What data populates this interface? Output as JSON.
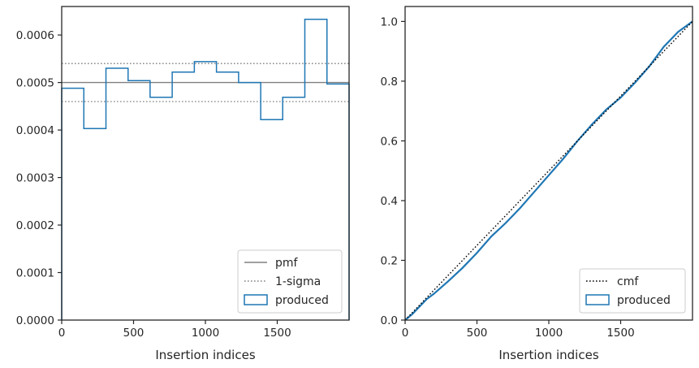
{
  "chart_data": [
    {
      "type": "step-histogram",
      "xlabel": "Insertion indices",
      "ylabel": "",
      "xlim": [
        0,
        2000
      ],
      "ylim": [
        0,
        0.00066
      ],
      "xticks": [
        0,
        500,
        1000,
        1500
      ],
      "yticks": [
        0,
        0.0001,
        0.0002,
        0.0003,
        0.0004,
        0.0005,
        0.0006
      ],
      "ytick_labels": [
        "0.0000",
        "0.0001",
        "0.0002",
        "0.0003",
        "0.0004",
        "0.0005",
        "0.0006"
      ],
      "bin_edges": [
        0,
        154,
        308,
        462,
        615,
        769,
        923,
        1077,
        1231,
        1385,
        1538,
        1692,
        1846,
        2000
      ],
      "values": [
        0.000488,
        0.000403,
        0.00053,
        0.000504,
        0.000469,
        0.000522,
        0.000544,
        0.000522,
        0.0005,
        0.000422,
        0.000469,
        0.000633,
        0.000497
      ],
      "lines": [
        {
          "name": "pmf",
          "y": 0.0005,
          "style": "solid",
          "color": "#808080"
        },
        {
          "name": "1-sigma",
          "y": 0.00054,
          "style": "dotted",
          "color": "#808080"
        },
        {
          "name": "1-sigma",
          "y": 0.00046,
          "style": "dotted",
          "color": "#808080"
        }
      ],
      "legend": {
        "position": "lower right",
        "entries": [
          {
            "label": "pmf",
            "kind": "line-solid",
            "color": "#808080"
          },
          {
            "label": "1-sigma",
            "kind": "line-dotted",
            "color": "#808080"
          },
          {
            "label": "produced",
            "kind": "patch",
            "color": "#1f77b4"
          }
        ]
      },
      "grid": false
    },
    {
      "type": "line",
      "xlabel": "Insertion indices",
      "ylabel": "",
      "xlim": [
        0,
        2000
      ],
      "ylim": [
        0,
        1.05
      ],
      "xticks": [
        0,
        500,
        1000,
        1500
      ],
      "yticks": [
        0,
        0.2,
        0.4,
        0.6,
        0.8,
        1.0
      ],
      "ytick_labels": [
        "0.0",
        "0.2",
        "0.4",
        "0.6",
        "0.8",
        "1.0"
      ],
      "series": [
        {
          "name": "cmf",
          "style": "dotted",
          "color": "#000000",
          "x": [
            0,
            2000
          ],
          "y": [
            0,
            1.0
          ]
        },
        {
          "name": "produced",
          "style": "solid",
          "color": "#1f77b4",
          "x": [
            0,
            50,
            100,
            150,
            200,
            300,
            400,
            500,
            600,
            700,
            800,
            900,
            1000,
            1100,
            1200,
            1300,
            1400,
            1500,
            1600,
            1700,
            1800,
            1900,
            2000
          ],
          "y": [
            0,
            0.02,
            0.045,
            0.07,
            0.088,
            0.13,
            0.175,
            0.225,
            0.28,
            0.325,
            0.375,
            0.43,
            0.485,
            0.54,
            0.6,
            0.655,
            0.705,
            0.745,
            0.795,
            0.85,
            0.915,
            0.965,
            1.0
          ]
        }
      ],
      "legend": {
        "position": "lower right",
        "entries": [
          {
            "label": "cmf",
            "kind": "line-dotted",
            "color": "#000000"
          },
          {
            "label": "produced",
            "kind": "patch",
            "color": "#1f77b4"
          }
        ]
      },
      "grid": false
    }
  ]
}
